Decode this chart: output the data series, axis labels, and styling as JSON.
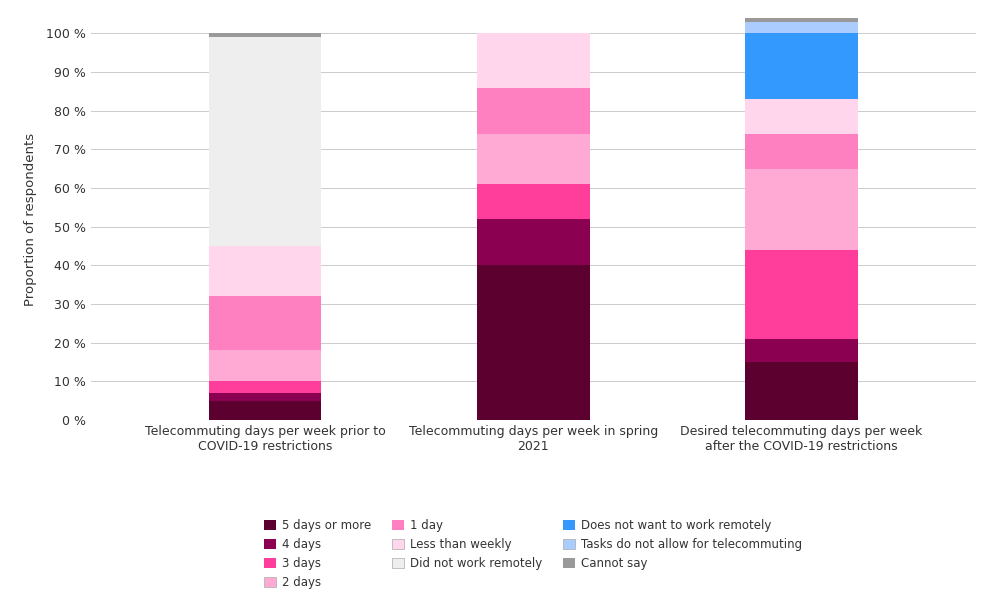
{
  "categories": [
    "Telecommuting days per week prior to\nCOVID-19 restrictions",
    "Telecommuting days per week in spring\n2021",
    "Desired telecommuting days per week\nafter the COVID-19 restrictions"
  ],
  "segments": [
    {
      "label": "5 days or more",
      "color": "#5c0030",
      "values": [
        5,
        40,
        15
      ]
    },
    {
      "label": "4 days",
      "color": "#8b0050",
      "values": [
        2,
        12,
        6
      ]
    },
    {
      "label": "3 days",
      "color": "#ff3d9a",
      "values": [
        3,
        9,
        23
      ]
    },
    {
      "label": "2 days",
      "color": "#ffaad4",
      "values": [
        8,
        13,
        21
      ]
    },
    {
      "label": "1 day",
      "color": "#ff80c0",
      "values": [
        14,
        12,
        9
      ]
    },
    {
      "label": "Less than weekly",
      "color": "#ffd6eb",
      "values": [
        13,
        14,
        9
      ]
    },
    {
      "label": "Did not work remotely",
      "color": "#eeeeee",
      "values": [
        54,
        0,
        0
      ]
    },
    {
      "label": "Does not want to work remotely",
      "color": "#3399ff",
      "values": [
        0,
        0,
        17
      ]
    },
    {
      "label": "Tasks do not allow for telecommuting",
      "color": "#aaccff",
      "values": [
        0,
        0,
        3
      ]
    },
    {
      "label": "Cannot say",
      "color": "#999999",
      "values": [
        1,
        0,
        2
      ]
    }
  ],
  "legend_items_row1": [
    {
      "label": "5 days or more",
      "color": "#5c0030"
    },
    {
      "label": "4 days",
      "color": "#8b0050"
    },
    {
      "label": "3 days",
      "color": "#ff3d9a"
    }
  ],
  "legend_items_row2": [
    {
      "label": "2 days",
      "color": "#ffaad4"
    },
    {
      "label": "1 day",
      "color": "#ff80c0"
    },
    {
      "label": "Less than weekly",
      "color": "#ffd6eb"
    }
  ],
  "legend_items_row3": [
    {
      "label": "Did not work remotely",
      "color": "#eeeeee"
    },
    {
      "label": "Does not want to work remotely",
      "color": "#3399ff"
    },
    {
      "label": "Tasks do not allow for telecommuting",
      "color": "#aaccff"
    }
  ],
  "legend_items_row4": [
    {
      "label": "Cannot say",
      "color": "#999999"
    }
  ],
  "ylabel": "Proportion of respondents",
  "yticks": [
    0,
    10,
    20,
    30,
    40,
    50,
    60,
    70,
    80,
    90,
    100
  ],
  "bar_width": 0.42,
  "fig_width": 10.06,
  "fig_height": 6.0
}
